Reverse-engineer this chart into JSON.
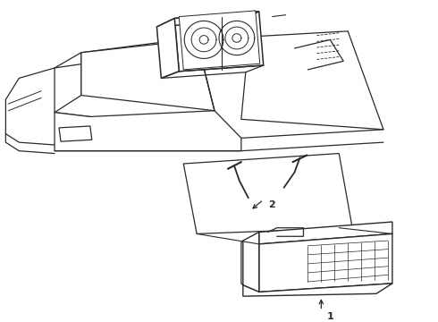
{
  "bg_color": "#ffffff",
  "line_color": "#2a2a2a",
  "line_width": 0.9,
  "label1": "1",
  "label2": "2"
}
